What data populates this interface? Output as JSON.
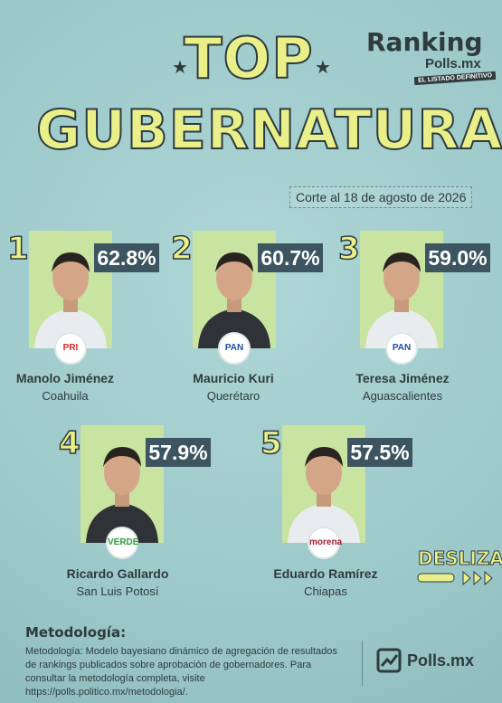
{
  "header": {
    "title_top": "TOP",
    "title_main": "GUBERNATURAS",
    "logo": "Ranking",
    "logo_sub": "Polls.mx",
    "logo_tag": "EL LISTADO DEFINITIVO",
    "date": "Corte al 18 de agosto de 2026"
  },
  "entries": [
    {
      "rank": "1",
      "percent": "62.8%",
      "name": "Manolo Jiménez",
      "state": "Coahuila",
      "party": "PRI"
    },
    {
      "rank": "2",
      "percent": "60.7%",
      "name": "Mauricio Kuri",
      "state": "Querétaro",
      "party": "PAN"
    },
    {
      "rank": "3",
      "percent": "59.0%",
      "name": "Teresa Jiménez",
      "state": "Aguascalientes",
      "party": "PAN"
    },
    {
      "rank": "4",
      "percent": "57.9%",
      "name": "Ricardo Gallardo",
      "state": "San Luis Potosí",
      "party": "VERDE"
    },
    {
      "rank": "5",
      "percent": "57.5%",
      "name": "Eduardo Ramírez",
      "state": "Chiapas",
      "party": "morena"
    }
  ],
  "swipe": "DESLIZA",
  "methodology": {
    "title": "Metodología:",
    "text": "Metodología: Modelo bayesiano dinámico de agregación de resultados de rankings publicados sobre aprobación de gobernadores. Para consultar la metodología completa, visite https://polls.politico.mx/metodologia/."
  },
  "footer": {
    "logo": "Polls.mx"
  }
}
